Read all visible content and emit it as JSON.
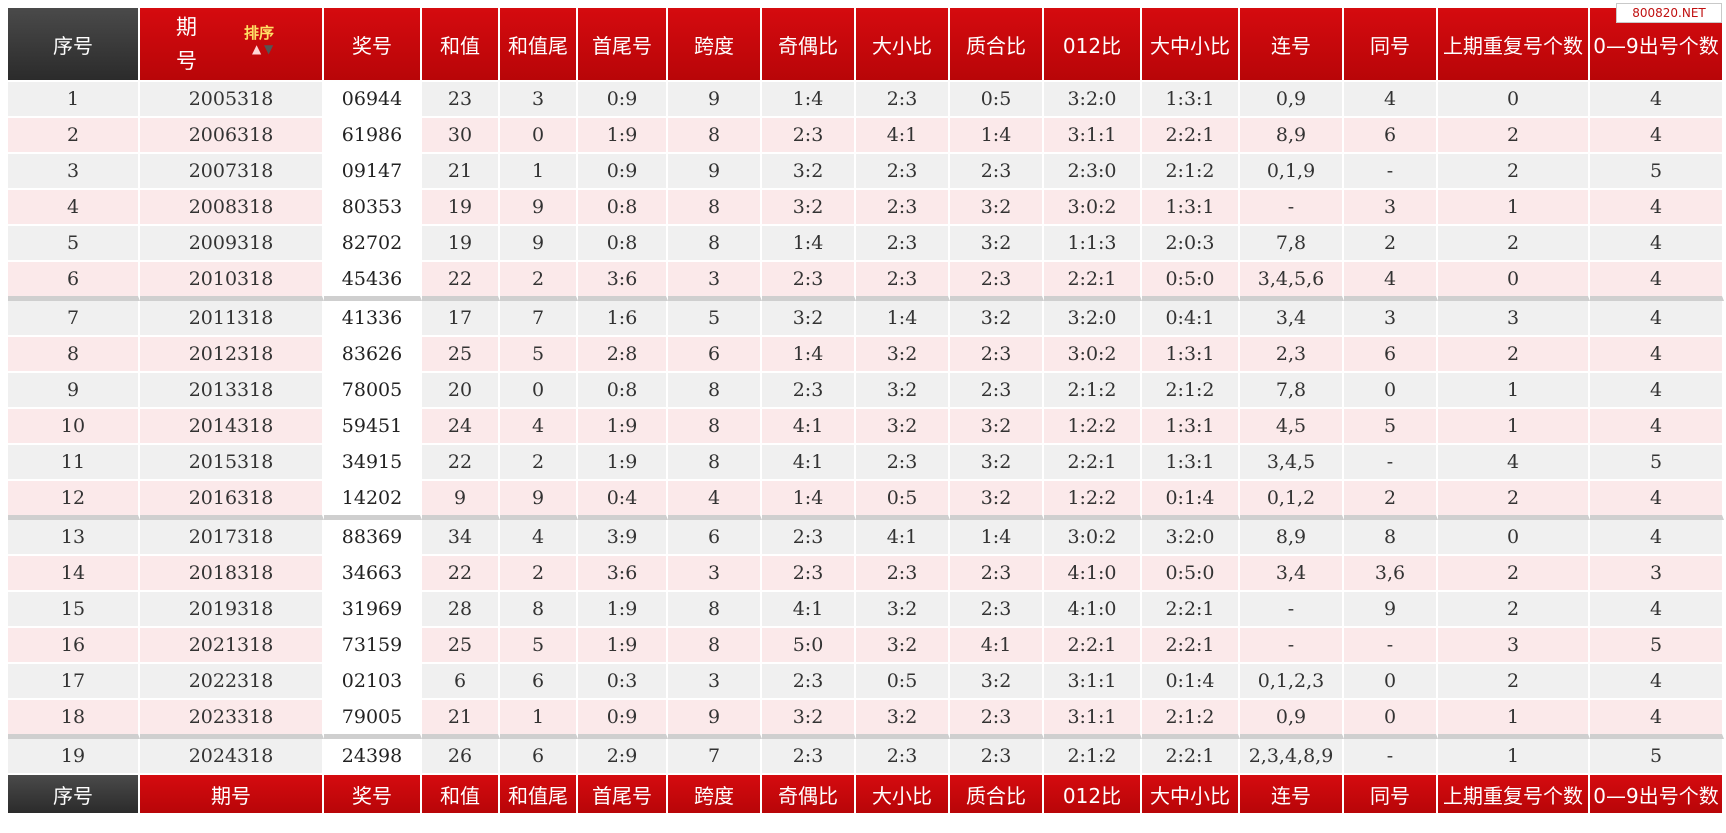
{
  "watermark": "800820.NET",
  "header": {
    "seq": "序号",
    "issue_top": "期",
    "issue_bottom": "号",
    "sort_label": "排序",
    "sort_up_icon": "▲",
    "sort_down_icon": "▼",
    "win": "奖号",
    "sum": "和值",
    "sum_tail": "和值尾",
    "head_tail": "首尾号",
    "span": "跨度",
    "odd_even": "奇偶比",
    "big_small": "大小比",
    "prime_comp": "质合比",
    "mod012": "012比",
    "bms": "大中小比",
    "consec": "连号",
    "same": "同号",
    "repeat": "上期重复号个数",
    "distinct": "0—9出号个数"
  },
  "footer": {
    "seq": "序号",
    "issue": "期号",
    "win": "奖号",
    "sum": "和值",
    "sum_tail": "和值尾",
    "head_tail": "首尾号",
    "span": "跨度",
    "odd_even": "奇偶比",
    "big_small": "大小比",
    "prime_comp": "质合比",
    "mod012": "012比",
    "bms": "大中小比",
    "consec": "连号",
    "same": "同号",
    "repeat": "上期重复号个数",
    "distinct": "0—9出号个数"
  },
  "rows": [
    [
      "1",
      "2005318",
      "06944",
      "23",
      "3",
      "0:9",
      "9",
      "1:4",
      "2:3",
      "0:5",
      "3:2:0",
      "1:3:1",
      "0,9",
      "4",
      "0",
      "4"
    ],
    [
      "2",
      "2006318",
      "61986",
      "30",
      "0",
      "1:9",
      "8",
      "2:3",
      "4:1",
      "1:4",
      "3:1:1",
      "2:2:1",
      "8,9",
      "6",
      "2",
      "4"
    ],
    [
      "3",
      "2007318",
      "09147",
      "21",
      "1",
      "0:9",
      "9",
      "3:2",
      "2:3",
      "2:3",
      "2:3:0",
      "2:1:2",
      "0,1,9",
      "-",
      "2",
      "5"
    ],
    [
      "4",
      "2008318",
      "80353",
      "19",
      "9",
      "0:8",
      "8",
      "3:2",
      "2:3",
      "3:2",
      "3:0:2",
      "1:3:1",
      "-",
      "3",
      "1",
      "4"
    ],
    [
      "5",
      "2009318",
      "82702",
      "19",
      "9",
      "0:8",
      "8",
      "1:4",
      "2:3",
      "3:2",
      "1:1:3",
      "2:0:3",
      "7,8",
      "2",
      "2",
      "4"
    ],
    [
      "6",
      "2010318",
      "45436",
      "22",
      "2",
      "3:6",
      "3",
      "2:3",
      "2:3",
      "2:3",
      "2:2:1",
      "0:5:0",
      "3,4,5,6",
      "4",
      "0",
      "4"
    ],
    [
      "7",
      "2011318",
      "41336",
      "17",
      "7",
      "1:6",
      "5",
      "3:2",
      "1:4",
      "3:2",
      "3:2:0",
      "0:4:1",
      "3,4",
      "3",
      "3",
      "4"
    ],
    [
      "8",
      "2012318",
      "83626",
      "25",
      "5",
      "2:8",
      "6",
      "1:4",
      "3:2",
      "2:3",
      "3:0:2",
      "1:3:1",
      "2,3",
      "6",
      "2",
      "4"
    ],
    [
      "9",
      "2013318",
      "78005",
      "20",
      "0",
      "0:8",
      "8",
      "2:3",
      "3:2",
      "2:3",
      "2:1:2",
      "2:1:2",
      "7,8",
      "0",
      "1",
      "4"
    ],
    [
      "10",
      "2014318",
      "59451",
      "24",
      "4",
      "1:9",
      "8",
      "4:1",
      "3:2",
      "3:2",
      "1:2:2",
      "1:3:1",
      "4,5",
      "5",
      "1",
      "4"
    ],
    [
      "11",
      "2015318",
      "34915",
      "22",
      "2",
      "1:9",
      "8",
      "4:1",
      "2:3",
      "3:2",
      "2:2:1",
      "1:3:1",
      "3,4,5",
      "-",
      "4",
      "5"
    ],
    [
      "12",
      "2016318",
      "14202",
      "9",
      "9",
      "0:4",
      "4",
      "1:4",
      "0:5",
      "3:2",
      "1:2:2",
      "0:1:4",
      "0,1,2",
      "2",
      "2",
      "4"
    ],
    [
      "13",
      "2017318",
      "88369",
      "34",
      "4",
      "3:9",
      "6",
      "2:3",
      "4:1",
      "1:4",
      "3:0:2",
      "3:2:0",
      "8,9",
      "8",
      "0",
      "4"
    ],
    [
      "14",
      "2018318",
      "34663",
      "22",
      "2",
      "3:6",
      "3",
      "2:3",
      "2:3",
      "2:3",
      "4:1:0",
      "0:5:0",
      "3,4",
      "3,6",
      "2",
      "3"
    ],
    [
      "15",
      "2019318",
      "31969",
      "28",
      "8",
      "1:9",
      "8",
      "4:1",
      "3:2",
      "2:3",
      "4:1:0",
      "2:2:1",
      "-",
      "9",
      "2",
      "4"
    ],
    [
      "16",
      "2021318",
      "73159",
      "25",
      "5",
      "1:9",
      "8",
      "5:0",
      "3:2",
      "4:1",
      "2:2:1",
      "2:2:1",
      "-",
      "-",
      "3",
      "5"
    ],
    [
      "17",
      "2022318",
      "02103",
      "6",
      "6",
      "0:3",
      "3",
      "2:3",
      "0:5",
      "3:2",
      "3:1:1",
      "0:1:4",
      "0,1,2,3",
      "0",
      "2",
      "4"
    ],
    [
      "18",
      "2023318",
      "79005",
      "21",
      "1",
      "0:9",
      "9",
      "3:2",
      "3:2",
      "2:3",
      "3:1:1",
      "2:1:2",
      "0,9",
      "0",
      "1",
      "4"
    ],
    [
      "19",
      "2024318",
      "24398",
      "26",
      "6",
      "2:9",
      "7",
      "2:3",
      "2:3",
      "2:3",
      "2:1:2",
      "2:2:1",
      "2,3,4,8,9",
      "-",
      "1",
      "5"
    ]
  ]
}
